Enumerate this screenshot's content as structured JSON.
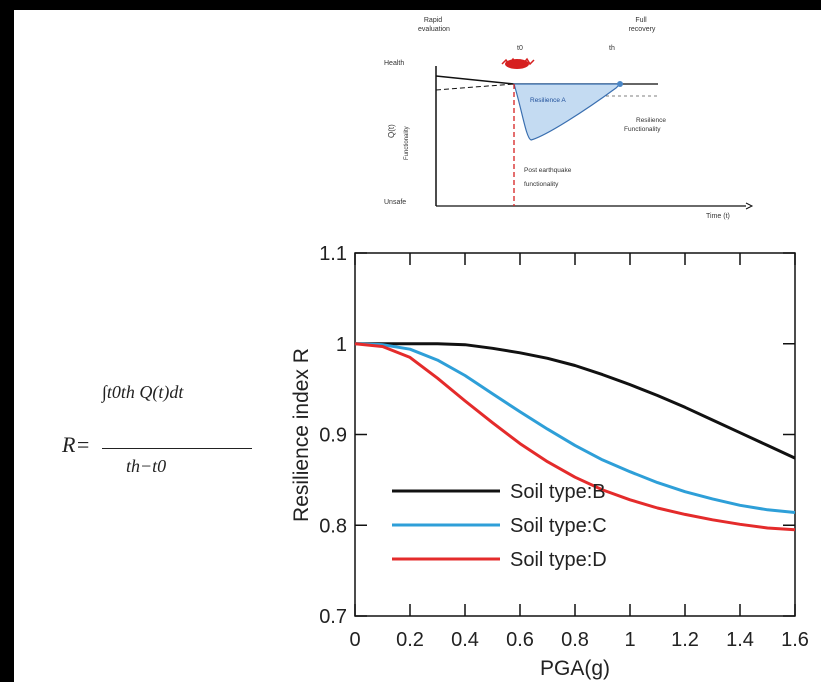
{
  "formula": {
    "lhs": "R=",
    "numerator": "∫t0th Q(t)dt",
    "denominator": "th−t0"
  },
  "inset": {
    "top_left_label": "Rapid\nevaluation",
    "top_right_label": "Full\nrecovery",
    "t0_label": "t0",
    "th_label": "th",
    "y_top_label": "Health",
    "y_bottom_label": "Unsafe",
    "y_axis_label": "Q(t)",
    "y_axis_sublabel": "Functionality",
    "area_label": "Resilience A",
    "right_note": "Resilience\nFunctionality",
    "event_note": "Post earthquake\nfunctionality",
    "x_axis_label": "Time (t)"
  },
  "chart_data": {
    "type": "line",
    "xlabel": "PGA(g)",
    "ylabel": "Resilience index R",
    "xlim": [
      0,
      1.6
    ],
    "ylim": [
      0.7,
      1.1
    ],
    "xticks": [
      "0",
      "0.2",
      "0.4",
      "0.6",
      "0.8",
      "1",
      "1.2",
      "1.4",
      "1.6"
    ],
    "yticks": [
      "0.7",
      "0.8",
      "0.9",
      "1",
      "1.1"
    ],
    "x": [
      0,
      0.1,
      0.2,
      0.3,
      0.4,
      0.5,
      0.6,
      0.7,
      0.8,
      0.9,
      1.0,
      1.1,
      1.2,
      1.3,
      1.4,
      1.5,
      1.6
    ],
    "series": [
      {
        "name": "Soil type:B",
        "color": "#111111",
        "values": [
          1.0,
          1.0,
          1.0,
          1.0,
          0.999,
          0.995,
          0.99,
          0.984,
          0.976,
          0.966,
          0.955,
          0.943,
          0.93,
          0.916,
          0.902,
          0.888,
          0.874
        ]
      },
      {
        "name": "Soil type:C",
        "color": "#2e9fd8",
        "values": [
          1.0,
          0.999,
          0.994,
          0.982,
          0.965,
          0.945,
          0.925,
          0.906,
          0.888,
          0.872,
          0.859,
          0.847,
          0.837,
          0.829,
          0.822,
          0.817,
          0.814
        ]
      },
      {
        "name": "Soil type:D",
        "color": "#e42b2b",
        "values": [
          1.0,
          0.997,
          0.985,
          0.962,
          0.937,
          0.913,
          0.89,
          0.87,
          0.853,
          0.839,
          0.828,
          0.819,
          0.812,
          0.806,
          0.801,
          0.797,
          0.795
        ]
      }
    ],
    "legend": "bottom-left",
    "grid": false
  }
}
